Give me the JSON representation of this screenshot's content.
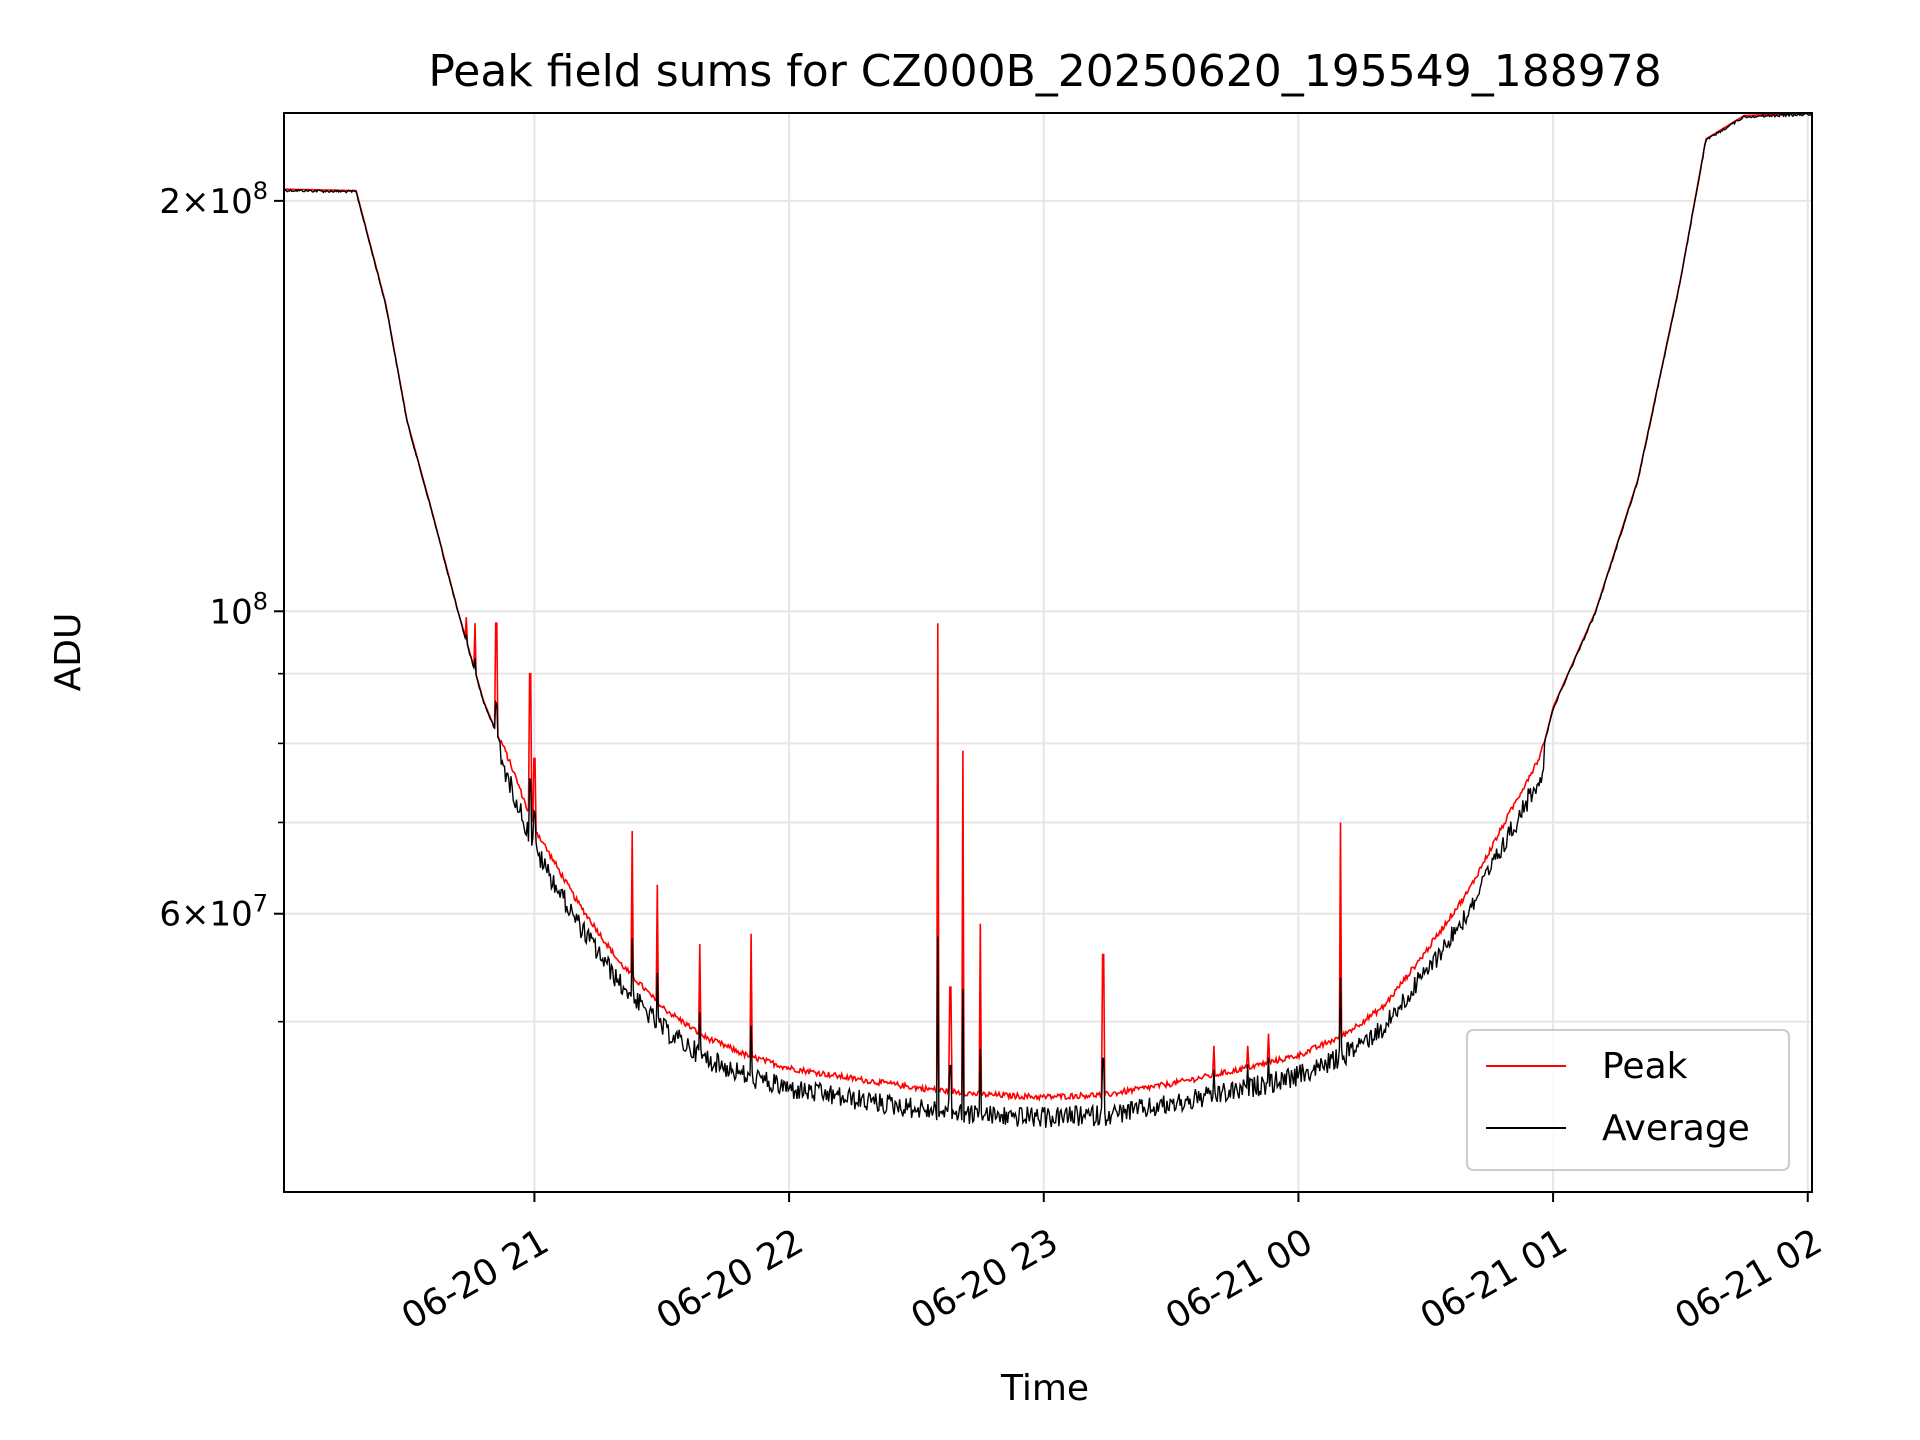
{
  "chart_data": {
    "type": "line",
    "title": "Peak field sums for CZ000B_20250620_195549_188978",
    "xlabel": "Time",
    "ylabel": "ADU",
    "yscale": "log",
    "xlim": [
      "2025-06-20 20:01",
      "2025-06-21 02:01"
    ],
    "ylim": [
      37500000,
      232000000
    ],
    "grid": true,
    "legend_position": "lower right",
    "x_ticks": [
      {
        "t": "2025-06-20 21:00",
        "label": "06-20 21"
      },
      {
        "t": "2025-06-20 22:00",
        "label": "06-20 22"
      },
      {
        "t": "2025-06-20 23:00",
        "label": "06-20 23"
      },
      {
        "t": "2025-06-21 00:00",
        "label": "06-21 00"
      },
      {
        "t": "2025-06-21 01:00",
        "label": "06-21 01"
      },
      {
        "t": "2025-06-21 02:00",
        "label": "06-21 02"
      }
    ],
    "y_major_ticks": [
      {
        "value": 60000000,
        "base": "6",
        "exp": "7"
      },
      {
        "value": 100000000,
        "base": "10",
        "exp": "8"
      },
      {
        "value": 200000000,
        "base": "2",
        "exp": "8"
      }
    ],
    "y_minor_ticks": [
      50000000,
      70000000,
      80000000,
      90000000
    ],
    "series": [
      {
        "name": "Peak",
        "color": "#ff0000"
      },
      {
        "name": "Average",
        "color": "#000000"
      }
    ],
    "baseline_x": [
      "2025-06-20 20:01",
      "2025-06-20 20:18",
      "2025-06-20 20:25",
      "2025-06-20 20:30",
      "2025-06-20 20:36",
      "2025-06-20 20:42",
      "2025-06-20 20:48",
      "2025-06-20 20:55",
      "2025-06-20 21:00",
      "2025-06-20 21:10",
      "2025-06-20 21:20",
      "2025-06-20 21:30",
      "2025-06-20 21:40",
      "2025-06-20 21:50",
      "2025-06-20 22:00",
      "2025-06-20 22:15",
      "2025-06-20 22:30",
      "2025-06-20 22:45",
      "2025-06-20 23:00",
      "2025-06-20 23:15",
      "2025-06-20 23:30",
      "2025-06-20 23:45",
      "2025-06-21 00:00",
      "2025-06-21 00:10",
      "2025-06-21 00:20",
      "2025-06-21 00:30",
      "2025-06-21 00:40",
      "2025-06-21 00:50",
      "2025-06-21 00:57",
      "2025-06-21 01:00",
      "2025-06-21 01:10",
      "2025-06-21 01:20",
      "2025-06-21 01:30",
      "2025-06-21 01:36",
      "2025-06-21 01:45",
      "2025-06-21 02:01"
    ],
    "baseline_y": [
      204000000,
      203500000,
      168000000,
      138000000,
      118000000,
      100000000,
      86000000,
      76000000,
      69000000,
      61000000,
      55000000,
      51000000,
      48500000,
      47000000,
      46000000,
      45200000,
      44500000,
      44000000,
      43800000,
      44000000,
      44800000,
      45800000,
      47000000,
      48500000,
      51000000,
      56000000,
      62000000,
      71000000,
      78000000,
      85000000,
      100000000,
      125000000,
      175000000,
      222000000,
      231000000,
      232000000
    ],
    "peak_spikes": [
      {
        "t": "2025-06-20 20:44",
        "value": 99000000
      },
      {
        "t": "2025-06-20 20:46",
        "value": 98000000
      },
      {
        "t": "2025-06-20 20:51",
        "value": 98000000
      },
      {
        "t": "2025-06-20 20:59",
        "value": 90000000
      },
      {
        "t": "2025-06-20 21:00",
        "value": 78000000
      },
      {
        "t": "2025-06-20 21:23",
        "value": 69000000
      },
      {
        "t": "2025-06-20 21:29",
        "value": 63000000
      },
      {
        "t": "2025-06-20 21:39",
        "value": 57000000
      },
      {
        "t": "2025-06-20 21:51",
        "value": 58000000
      },
      {
        "t": "2025-06-20 22:35",
        "value": 98000000
      },
      {
        "t": "2025-06-20 22:38",
        "value": 53000000
      },
      {
        "t": "2025-06-20 22:41",
        "value": 79000000
      },
      {
        "t": "2025-06-20 22:45",
        "value": 59000000
      },
      {
        "t": "2025-06-20 23:14",
        "value": 56000000
      },
      {
        "t": "2025-06-20 23:40",
        "value": 48000000
      },
      {
        "t": "2025-06-20 23:48",
        "value": 48000000
      },
      {
        "t": "2025-06-20 23:53",
        "value": 49000000
      },
      {
        "t": "2025-06-21 00:10",
        "value": 70000000
      }
    ]
  }
}
